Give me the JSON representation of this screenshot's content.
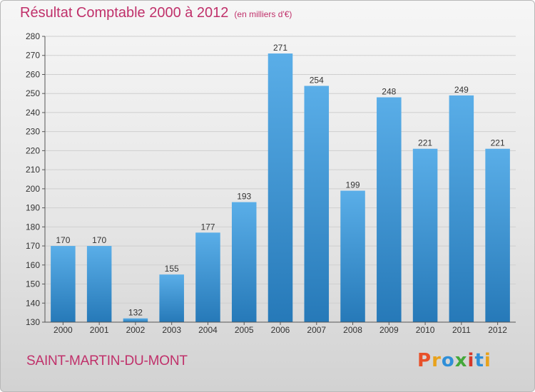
{
  "header": {
    "title": "Résultat Comptable 2000 à 2012",
    "unit": "(en milliers d'€)"
  },
  "footer": {
    "commune": "SAINT-MARTIN-DU-MONT",
    "logo_text": "Proxiti",
    "logo_colors": [
      "#e8512a",
      "#e8a21c",
      "#2f8fd8",
      "#44a83a",
      "#d5392b",
      "#2f8fd8",
      "#e8a21c"
    ]
  },
  "colors": {
    "bar_top": "#5aaee8",
    "bar_bottom": "#2679b8",
    "accent": "#c0306a"
  },
  "chart_data": {
    "type": "bar",
    "title": "Résultat Comptable 2000 à 2012",
    "subtitle": "(en milliers d'€)",
    "categories": [
      "2000",
      "2001",
      "2002",
      "2003",
      "2004",
      "2005",
      "2006",
      "2007",
      "2008",
      "2009",
      "2010",
      "2011",
      "2012"
    ],
    "values": [
      170,
      170,
      132,
      155,
      177,
      193,
      271,
      254,
      199,
      248,
      221,
      249,
      221
    ],
    "ylim": [
      130,
      280
    ],
    "yticks": [
      130,
      140,
      150,
      160,
      170,
      180,
      190,
      200,
      210,
      220,
      230,
      240,
      250,
      260,
      270,
      280
    ],
    "grid": true,
    "xlabel": "",
    "ylabel": ""
  }
}
